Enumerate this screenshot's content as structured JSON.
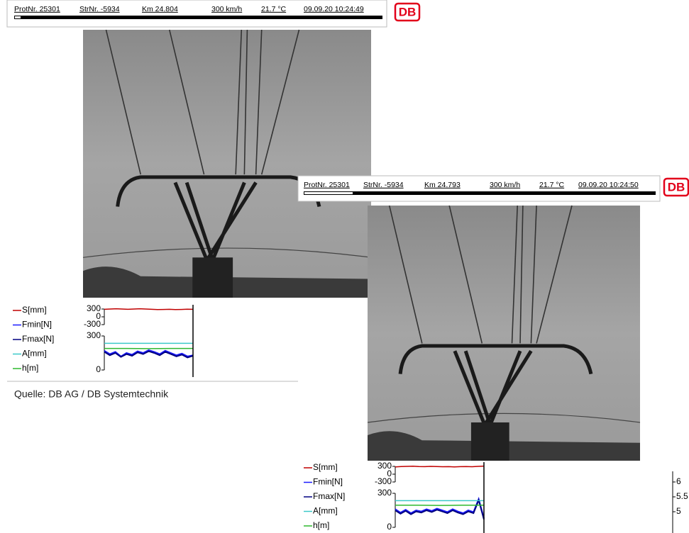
{
  "panels": [
    {
      "header": [
        "ProtNr. 25301",
        "StrNr. -5934",
        "Km 24.804",
        "300 km/h",
        "21.7 °C",
        "09.09.20 10:24:49"
      ],
      "logo": "DB",
      "chart": {
        "s_ticks": [
          300,
          0,
          -300
        ],
        "f_ticks": [
          300,
          0
        ],
        "series": [
          {
            "name": "S[mm]",
            "color": "#c00000",
            "axis": "s",
            "values": [
              290,
              300,
              310,
              300,
              290,
              300,
              310,
              300,
              290,
              280,
              285,
              290,
              280,
              285,
              295,
              290
            ]
          },
          {
            "name": "Fmin[N]",
            "color": "#1a1aff",
            "values": [
              170,
              140,
              160,
              120,
              150,
              135,
              165,
              150,
              175,
              160,
              140,
              170,
              150,
              130,
              145,
              120,
              130
            ]
          },
          {
            "name": "Fmax[N]",
            "color": "#000080",
            "values": [
              160,
              130,
              150,
              115,
              140,
              125,
              155,
              140,
              165,
              150,
              130,
              160,
              140,
              120,
              135,
              110,
              125
            ]
          },
          {
            "name": "A[mm]",
            "color": "#3cc8c8",
            "values": [
              235,
              235,
              235,
              235,
              235
            ]
          },
          {
            "name": "h[m]",
            "color": "#2db82d",
            "values": [
              190,
              190,
              188,
              190,
              190
            ]
          }
        ]
      }
    },
    {
      "header": [
        "ProtNr. 25301",
        "StrNr. -5934",
        "Km 24.793",
        "300 km/h",
        "21.7 °C",
        "09.09.20 10:24:50"
      ],
      "logo": "DB",
      "chart": {
        "s_ticks": [
          300,
          0,
          -300
        ],
        "f_ticks": [
          300,
          0
        ],
        "series": [
          {
            "name": "S[mm]",
            "color": "#c00000",
            "axis": "s",
            "values": [
              280,
              295,
              300,
              305,
              295,
              290,
              300,
              295,
              285,
              290,
              280,
              290,
              295,
              285,
              300,
              310
            ]
          },
          {
            "name": "Fmin[N]",
            "color": "#1a1aff",
            "values": [
              160,
              130,
              155,
              125,
              150,
              140,
              160,
              145,
              165,
              150,
              135,
              160,
              140,
              125,
              150,
              135,
              250,
              80
            ]
          },
          {
            "name": "Fmax[N]",
            "color": "#000080",
            "values": [
              150,
              120,
              145,
              115,
              140,
              130,
              150,
              135,
              155,
              140,
              125,
              150,
              130,
              115,
              140,
              125,
              240,
              70
            ]
          },
          {
            "name": "A[mm]",
            "color": "#3cc8c8",
            "values": [
              235,
              235,
              235,
              235,
              235
            ]
          },
          {
            "name": "h[m]",
            "color": "#2db82d",
            "values": [
              195,
              195,
              193,
              195,
              195
            ]
          }
        ]
      }
    }
  ],
  "right_axis_ticks": [
    6,
    5.5,
    5
  ],
  "caption": "Quelle: DB AG / DB Systemtechnik"
}
